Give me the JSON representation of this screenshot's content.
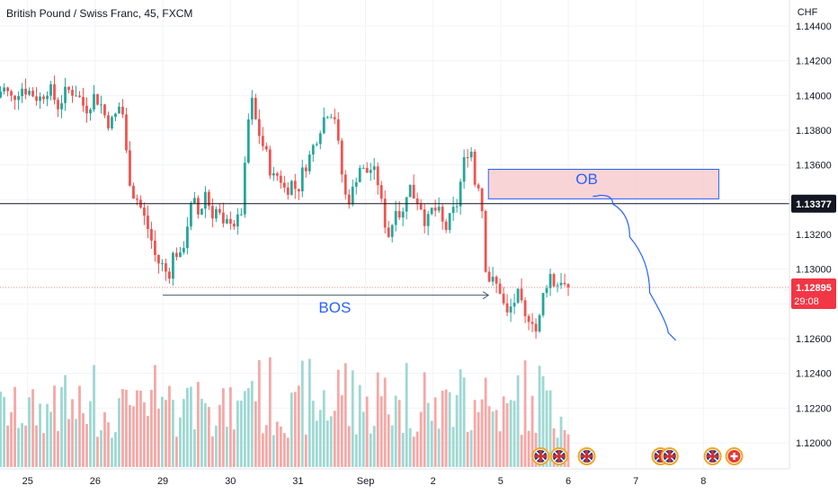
{
  "header": {
    "title": "British Pound / Swiss Franc, 45, FXCM"
  },
  "chart_data": {
    "type": "candlestick",
    "symbol": "British Pound / Swiss Franc",
    "interval": "45",
    "source": "FXCM",
    "currency_label": "CHF",
    "y_ticks": [
      1.144,
      1.142,
      1.14,
      1.138,
      1.136,
      1.134,
      1.132,
      1.13,
      1.128,
      1.126,
      1.124,
      1.122,
      1.12
    ],
    "y_tick_labels": [
      "1.14400",
      "1.14200",
      "1.14000",
      "1.13800",
      "1.13600",
      "1.13400",
      "1.13200",
      "1.13000",
      "1.12800",
      "1.12600",
      "1.12400",
      "1.12200",
      "1.12000"
    ],
    "x_ticks": [
      {
        "label": "25",
        "x": 0
      },
      {
        "label": "26",
        "x": 22
      },
      {
        "label": "29",
        "x": 44
      },
      {
        "label": "30",
        "x": 66
      },
      {
        "label": "31",
        "x": 88
      },
      {
        "label": "Sep",
        "x": 110
      },
      {
        "label": "2",
        "x": 132
      },
      {
        "label": "5",
        "x": 154
      },
      {
        "label": "6",
        "x": 176
      },
      {
        "label": "7",
        "x": 198
      },
      {
        "label": "8",
        "x": 220
      }
    ],
    "x_range": [
      -9,
      248
    ],
    "y_range": [
      1.1185,
      1.1455
    ],
    "keypoints": [
      [
        -10,
        1.1395
      ],
      [
        -7,
        1.1405
      ],
      [
        -4,
        1.1398
      ],
      [
        -1,
        1.1405
      ],
      [
        2,
        1.1402
      ],
      [
        5,
        1.1398
      ],
      [
        8,
        1.1405
      ],
      [
        11,
        1.1394
      ],
      [
        14,
        1.1403
      ],
      [
        17,
        1.1402
      ],
      [
        20,
        1.1392
      ],
      [
        23,
        1.14
      ],
      [
        25,
        1.1395
      ],
      [
        27,
        1.1385
      ],
      [
        29,
        1.1385
      ],
      [
        31,
        1.1394
      ],
      [
        32,
        1.1392
      ],
      [
        33,
        1.137
      ],
      [
        35,
        1.1345
      ],
      [
        37,
        1.134
      ],
      [
        39,
        1.133
      ],
      [
        41,
        1.132
      ],
      [
        43,
        1.1305
      ],
      [
        45,
        1.1302
      ],
      [
        47,
        1.1296
      ],
      [
        49,
        1.1312
      ],
      [
        51,
        1.1305
      ],
      [
        53,
        1.1325
      ],
      [
        55,
        1.134
      ],
      [
        57,
        1.133
      ],
      [
        59,
        1.1345
      ],
      [
        61,
        1.1332
      ],
      [
        63,
        1.1335
      ],
      [
        65,
        1.1322
      ],
      [
        67,
        1.133
      ],
      [
        69,
        1.1325
      ],
      [
        71,
        1.1335
      ],
      [
        73,
        1.1385
      ],
      [
        74,
        1.1398
      ],
      [
        75,
        1.1388
      ],
      [
        77,
        1.1375
      ],
      [
        79,
        1.1365
      ],
      [
        81,
        1.1352
      ],
      [
        83,
        1.1355
      ],
      [
        85,
        1.1345
      ],
      [
        87,
        1.135
      ],
      [
        89,
        1.1345
      ],
      [
        91,
        1.1358
      ],
      [
        93,
        1.1365
      ],
      [
        95,
        1.1375
      ],
      [
        97,
        1.1385
      ],
      [
        99,
        1.1392
      ],
      [
        101,
        1.139
      ],
      [
        103,
        1.136
      ],
      [
        105,
        1.1338
      ],
      [
        107,
        1.1345
      ],
      [
        109,
        1.136
      ],
      [
        111,
        1.1355
      ],
      [
        113,
        1.1358
      ],
      [
        115,
        1.1352
      ],
      [
        117,
        1.133
      ],
      [
        119,
        1.1318
      ],
      [
        121,
        1.1338
      ],
      [
        123,
        1.1328
      ],
      [
        125,
        1.135
      ],
      [
        127,
        1.1342
      ],
      [
        129,
        1.1338
      ],
      [
        131,
        1.1325
      ],
      [
        133,
        1.1335
      ],
      [
        135,
        1.1332
      ],
      [
        137,
        1.1322
      ],
      [
        139,
        1.133
      ],
      [
        141,
        1.1338
      ],
      [
        143,
        1.136
      ],
      [
        145,
        1.1372
      ],
      [
        146,
        1.1365
      ],
      [
        147,
        1.1345
      ],
      [
        148,
        1.135
      ],
      [
        149,
        1.1338
      ],
      [
        150,
        1.1305
      ],
      [
        151,
        1.1295
      ],
      [
        153,
        1.1292
      ],
      [
        155,
        1.1288
      ],
      [
        157,
        1.1272
      ],
      [
        159,
        1.128
      ],
      [
        161,
        1.1285
      ],
      [
        163,
        1.127
      ],
      [
        165,
        1.1275
      ],
      [
        167,
        1.1262
      ],
      [
        169,
        1.1285
      ],
      [
        171,
        1.1298
      ],
      [
        173,
        1.129
      ],
      [
        175,
        1.1295
      ],
      [
        176,
        1.129
      ]
    ],
    "candle_count": 160,
    "last_price": 1.12895,
    "last_price_label": "1.12895",
    "countdown_label": "29:08",
    "horizontal_line_price": 1.13377,
    "horizontal_line_label": "1.13377",
    "annotations": {
      "bos": {
        "label": "BOS",
        "from": [
          44,
          1.1285
        ],
        "to": [
          150,
          1.1285
        ],
        "label_at": [
          100,
          1.1275
        ]
      },
      "ob": {
        "label": "OB",
        "x1": 150,
        "x2": 225,
        "y1": 1.13575,
        "y2": 1.13405,
        "label_at": [
          182,
          1.1349
        ]
      },
      "projection": {
        "points": [
          [
            184,
            1.1342
          ],
          [
            188,
            1.1343
          ],
          [
            193,
            1.1332
          ],
          [
            199,
            1.1305
          ],
          [
            206,
            1.1268
          ],
          [
            211,
            1.1259
          ]
        ]
      }
    },
    "event_markers": [
      {
        "icon": "uk-flag-icon",
        "x": 167
      },
      {
        "icon": "uk-flag-icon",
        "x": 173
      },
      {
        "icon": "uk-flag-icon",
        "x": 182
      },
      {
        "icon": "uk-flag-icon",
        "x": 206
      },
      {
        "icon": "uk-flag-icon",
        "x": 209
      },
      {
        "icon": "uk-flag-icon",
        "x": 223
      },
      {
        "icon": "swiss-flag-icon",
        "x": 230
      }
    ],
    "colors": {
      "up": "#26a69a",
      "down": "#ef5350",
      "vol_up": "#9ed8d2",
      "vol_down": "#f5a8a6",
      "grid": "#f0f3fa",
      "annotation": "#2962ff",
      "ob_fill": "#f8c9cc",
      "ob_border": "#2962ff",
      "last_price_bg": "#f23645",
      "hline": "#131722",
      "hline_label_bg": "#131722"
    }
  }
}
